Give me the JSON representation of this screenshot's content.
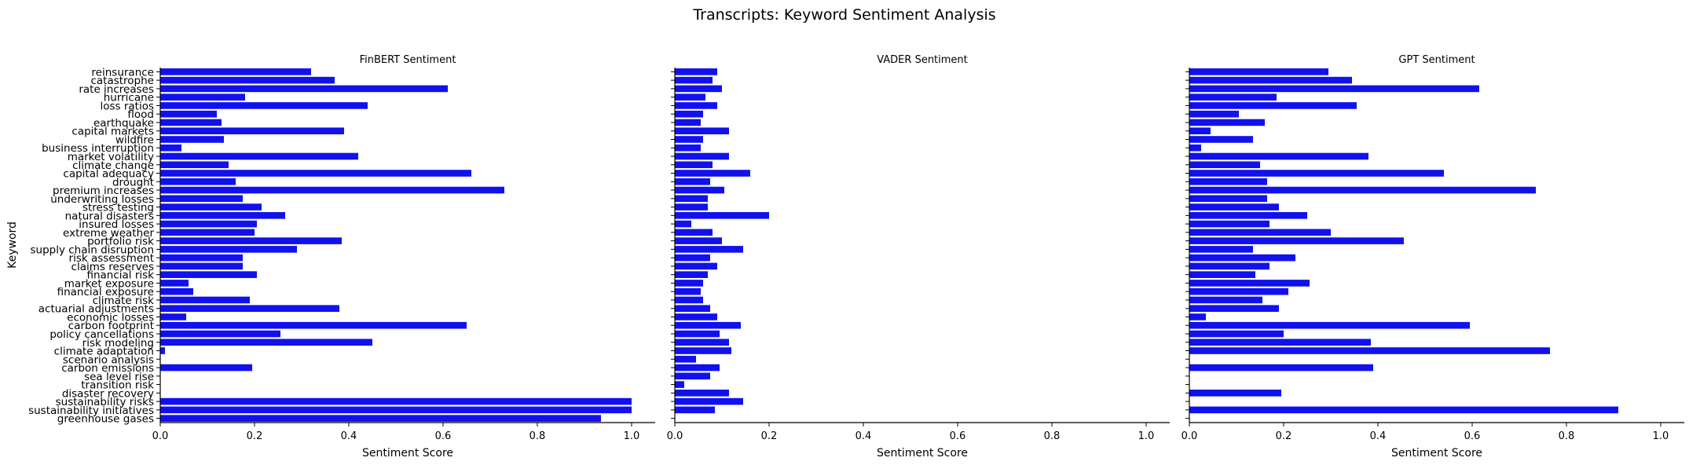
{
  "figure": {
    "title": "Transcripts: Keyword Sentiment Analysis",
    "ylabel": "Keyword"
  },
  "colors": {
    "bar": "#1111ee",
    "axis": "#000000"
  },
  "chart_data": [
    {
      "type": "bar",
      "orientation": "horizontal",
      "title": "FinBERT Sentiment",
      "xlabel": "Sentiment Score",
      "ylabel": "Keyword",
      "xlim": [
        0,
        1.05
      ],
      "xticks": [
        "0.0",
        "0.2",
        "0.4",
        "0.6",
        "0.8",
        "1.0"
      ],
      "grid": false,
      "categories": [
        "reinsurance",
        "catastrophe",
        "rate increases",
        "hurricane",
        "loss ratios",
        "flood",
        "earthquake",
        "capital markets",
        "wildfire",
        "business interruption",
        "market volatility",
        "climate change",
        "capital adequacy",
        "drought",
        "premium increases",
        "underwriting losses",
        "stress testing",
        "natural disasters",
        "insured losses",
        "extreme weather",
        "portfolio risk",
        "supply chain disruption",
        "risk assessment",
        "claims reserves",
        "financial risk",
        "market exposure",
        "financial exposure",
        "climate risk",
        "actuarial adjustments",
        "economic losses",
        "carbon footprint",
        "policy cancellations",
        "risk modeling",
        "climate adaptation",
        "scenario analysis",
        "carbon emissions",
        "sea level rise",
        "transition risk",
        "disaster recovery",
        "sustainability risks",
        "sustainability initiatives",
        "greenhouse gases"
      ],
      "values": [
        0.32,
        0.37,
        0.61,
        0.18,
        0.44,
        0.12,
        0.13,
        0.39,
        0.135,
        0.045,
        0.42,
        0.145,
        0.66,
        0.16,
        0.73,
        0.175,
        0.215,
        0.265,
        0.205,
        0.2,
        0.385,
        0.29,
        0.175,
        0.175,
        0.205,
        0.06,
        0.07,
        0.19,
        0.38,
        0.055,
        0.65,
        0.255,
        0.45,
        0.01,
        0.0,
        0.195,
        0.0,
        0.0,
        0.0,
        1.0,
        1.0,
        0.935
      ]
    },
    {
      "type": "bar",
      "orientation": "horizontal",
      "title": "VADER Sentiment",
      "xlabel": "Sentiment Score",
      "xlim": [
        0,
        1.05
      ],
      "xticks": [
        "0.0",
        "0.2",
        "0.4",
        "0.6",
        "0.8",
        "1.0"
      ],
      "grid": false,
      "categories": [
        "reinsurance",
        "catastrophe",
        "rate increases",
        "hurricane",
        "loss ratios",
        "flood",
        "earthquake",
        "capital markets",
        "wildfire",
        "business interruption",
        "market volatility",
        "climate change",
        "capital adequacy",
        "drought",
        "premium increases",
        "underwriting losses",
        "stress testing",
        "natural disasters",
        "insured losses",
        "extreme weather",
        "portfolio risk",
        "supply chain disruption",
        "risk assessment",
        "claims reserves",
        "financial risk",
        "market exposure",
        "financial exposure",
        "climate risk",
        "actuarial adjustments",
        "economic losses",
        "carbon footprint",
        "policy cancellations",
        "risk modeling",
        "climate adaptation",
        "scenario analysis",
        "carbon emissions",
        "sea level rise",
        "transition risk",
        "disaster recovery",
        "sustainability risks",
        "sustainability initiatives",
        "greenhouse gases"
      ],
      "values": [
        0.09,
        0.08,
        0.1,
        0.065,
        0.09,
        0.06,
        0.055,
        0.115,
        0.06,
        0.055,
        0.115,
        0.08,
        0.16,
        0.075,
        0.105,
        0.07,
        0.07,
        0.2,
        0.035,
        0.08,
        0.1,
        0.145,
        0.075,
        0.09,
        0.07,
        0.06,
        0.055,
        0.06,
        0.075,
        0.09,
        0.14,
        0.095,
        0.115,
        0.12,
        0.045,
        0.095,
        0.075,
        0.02,
        0.115,
        0.145,
        0.085,
        0.0
      ]
    },
    {
      "type": "bar",
      "orientation": "horizontal",
      "title": "GPT Sentiment",
      "xlabel": "Sentiment Score",
      "xlim": [
        0,
        1.05
      ],
      "xticks": [
        "0.0",
        "0.2",
        "0.4",
        "0.6",
        "0.8",
        "1.0"
      ],
      "grid": false,
      "categories": [
        "reinsurance",
        "catastrophe",
        "rate increases",
        "hurricane",
        "loss ratios",
        "flood",
        "earthquake",
        "capital markets",
        "wildfire",
        "business interruption",
        "market volatility",
        "climate change",
        "capital adequacy",
        "drought",
        "premium increases",
        "underwriting losses",
        "stress testing",
        "natural disasters",
        "insured losses",
        "extreme weather",
        "portfolio risk",
        "supply chain disruption",
        "risk assessment",
        "claims reserves",
        "financial risk",
        "market exposure",
        "financial exposure",
        "climate risk",
        "actuarial adjustments",
        "economic losses",
        "carbon footprint",
        "policy cancellations",
        "risk modeling",
        "climate adaptation",
        "scenario analysis",
        "carbon emissions",
        "sea level rise",
        "transition risk",
        "disaster recovery",
        "sustainability risks",
        "sustainability initiatives",
        "greenhouse gases"
      ],
      "values": [
        0.295,
        0.345,
        0.615,
        0.185,
        0.355,
        0.105,
        0.16,
        0.045,
        0.135,
        0.025,
        0.38,
        0.15,
        0.54,
        0.165,
        0.735,
        0.165,
        0.19,
        0.25,
        0.17,
        0.3,
        0.455,
        0.135,
        0.225,
        0.17,
        0.14,
        0.255,
        0.21,
        0.155,
        0.19,
        0.035,
        0.595,
        0.2,
        0.385,
        0.765,
        0.0,
        0.39,
        0.0,
        0.0,
        0.195,
        0.0,
        0.91,
        0.0
      ]
    }
  ]
}
